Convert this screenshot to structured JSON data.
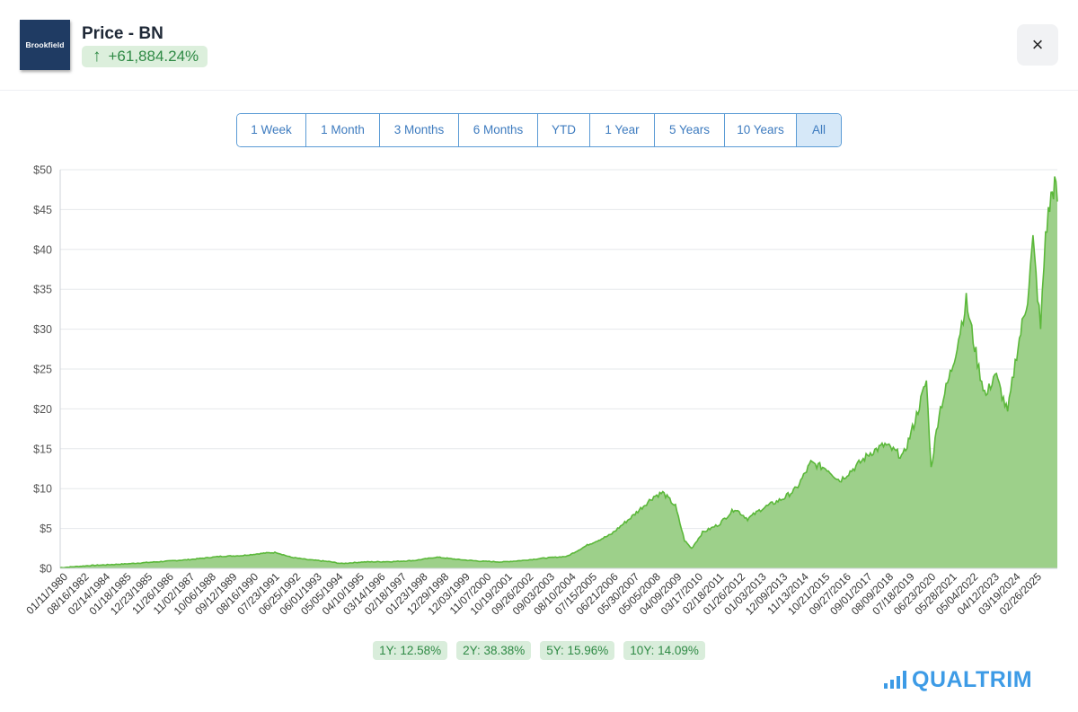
{
  "header": {
    "logo_text": "Brookfield",
    "title": "Price - BN",
    "change_arrow": "↑",
    "change_pct": "+61,884.24%",
    "close_icon": "×"
  },
  "ranges": [
    {
      "label": "1 Week",
      "active": false
    },
    {
      "label": "1 Month",
      "active": false
    },
    {
      "label": "3 Months",
      "active": false
    },
    {
      "label": "6 Months",
      "active": false
    },
    {
      "label": "YTD",
      "active": false
    },
    {
      "label": "1 Year",
      "active": false
    },
    {
      "label": "5 Years",
      "active": false
    },
    {
      "label": "10 Years",
      "active": false
    },
    {
      "label": "All",
      "active": true
    }
  ],
  "stats": [
    {
      "label": "1Y: 12.58%"
    },
    {
      "label": "2Y: 38.38%"
    },
    {
      "label": "5Y: 15.96%"
    },
    {
      "label": "10Y: 14.09%"
    }
  ],
  "brand": {
    "text": "QUALTRIM",
    "color": "#3d9be6"
  },
  "colors": {
    "line": "#5bb83a",
    "fill": "#9dd08a",
    "range_border": "#5b9bd5",
    "badge_bg": "#dcefdc"
  },
  "chart_data": {
    "type": "area",
    "title": "",
    "xlabel": "",
    "ylabel": "",
    "ylim": [
      0,
      50
    ],
    "y_ticks": [
      "$0",
      "$5",
      "$10",
      "$15",
      "$20",
      "$25",
      "$30",
      "$35",
      "$40",
      "$45",
      "$50"
    ],
    "y_tick_values": [
      0,
      5,
      10,
      15,
      20,
      25,
      30,
      35,
      40,
      45,
      50
    ],
    "x_tick_labels": [
      "01/11/1980",
      "08/16/1982",
      "02/14/1984",
      "01/18/1985",
      "12/23/1985",
      "11/26/1986",
      "11/02/1987",
      "10/06/1988",
      "09/12/1989",
      "08/16/1990",
      "07/23/1991",
      "06/25/1992",
      "06/01/1993",
      "05/05/1994",
      "04/10/1995",
      "03/14/1996",
      "02/18/1997",
      "01/23/1998",
      "12/29/1998",
      "12/03/1999",
      "11/07/2000",
      "10/19/2001",
      "09/26/2002",
      "09/03/2003",
      "08/10/2004",
      "07/15/2005",
      "06/21/2006",
      "05/30/2007",
      "05/05/2008",
      "04/09/2009",
      "03/17/2010",
      "02/18/2011",
      "01/26/2012",
      "01/03/2013",
      "12/09/2013",
      "11/13/2014",
      "10/21/2015",
      "09/27/2016",
      "09/01/2017",
      "08/09/2018",
      "07/18/2019",
      "06/23/2020",
      "05/28/2021",
      "05/04/2022",
      "04/12/2023",
      "03/19/2024",
      "02/26/2025"
    ],
    "grid": true,
    "legend": "none",
    "series": [
      {
        "values": [
          [
            "1980-01-11",
            0.08
          ],
          [
            "1981-06-01",
            0.35
          ],
          [
            "1983-01-01",
            0.55
          ],
          [
            "1984-06-01",
            0.8
          ],
          [
            "1986-01-01",
            1.1
          ],
          [
            "1987-06-01",
            1.5
          ],
          [
            "1988-06-01",
            1.6
          ],
          [
            "1989-06-01",
            1.9
          ],
          [
            "1990-01-01",
            2.0
          ],
          [
            "1990-09-01",
            1.4
          ],
          [
            "1991-06-01",
            1.1
          ],
          [
            "1992-06-01",
            0.85
          ],
          [
            "1993-01-01",
            0.6
          ],
          [
            "1994-01-01",
            0.8
          ],
          [
            "1995-06-01",
            0.85
          ],
          [
            "1996-06-01",
            1.0
          ],
          [
            "1997-06-01",
            1.4
          ],
          [
            "1998-06-01",
            1.1
          ],
          [
            "1999-06-01",
            0.9
          ],
          [
            "2000-06-01",
            0.8
          ],
          [
            "2001-06-01",
            1.0
          ],
          [
            "2002-06-01",
            1.3
          ],
          [
            "2003-06-01",
            1.5
          ],
          [
            "2004-06-01",
            3.0
          ],
          [
            "2005-06-01",
            4.2
          ],
          [
            "2006-06-01",
            6.5
          ],
          [
            "2007-06-01",
            9.0
          ],
          [
            "2007-11-01",
            9.5
          ],
          [
            "2008-06-01",
            7.8
          ],
          [
            "2008-11-01",
            3.5
          ],
          [
            "2009-03-01",
            2.5
          ],
          [
            "2009-09-01",
            4.5
          ],
          [
            "2010-06-01",
            5.5
          ],
          [
            "2011-03-01",
            7.5
          ],
          [
            "2011-10-01",
            6.2
          ],
          [
            "2012-06-01",
            7.5
          ],
          [
            "2013-06-01",
            8.8
          ],
          [
            "2014-01-01",
            10.0
          ],
          [
            "2014-09-01",
            13.2
          ],
          [
            "2015-06-01",
            12.5
          ],
          [
            "2016-01-01",
            11.0
          ],
          [
            "2016-10-01",
            12.8
          ],
          [
            "2017-06-01",
            14.5
          ],
          [
            "2018-02-01",
            15.5
          ],
          [
            "2018-12-01",
            14.0
          ],
          [
            "2019-06-01",
            18.0
          ],
          [
            "2020-01-01",
            23.5
          ],
          [
            "2020-03-20",
            12.5
          ],
          [
            "2020-08-01",
            19.5
          ],
          [
            "2021-03-01",
            25.0
          ],
          [
            "2021-06-01",
            28.0
          ],
          [
            "2021-11-01",
            33.5
          ],
          [
            "2022-06-01",
            25.0
          ],
          [
            "2022-10-01",
            21.5
          ],
          [
            "2023-03-01",
            24.5
          ],
          [
            "2023-10-01",
            19.5
          ],
          [
            "2024-03-01",
            27.0
          ],
          [
            "2024-09-01",
            34.0
          ],
          [
            "2024-12-01",
            41.0
          ],
          [
            "2025-04-08",
            30.0
          ],
          [
            "2025-07-01",
            42.0
          ],
          [
            "2025-10-01",
            46.5
          ],
          [
            "2025-12-01",
            48.2
          ],
          [
            "2026-01-15",
            46.0
          ]
        ]
      }
    ]
  }
}
